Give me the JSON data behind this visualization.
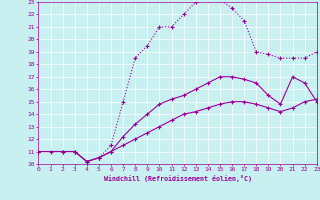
{
  "xlabel": "Windchill (Refroidissement éolien,°C)",
  "bg_color": "#c8f0f0",
  "line_color": "#990099",
  "xlim": [
    0,
    23
  ],
  "ylim": [
    10,
    23
  ],
  "yticks": [
    10,
    11,
    12,
    13,
    14,
    15,
    16,
    17,
    18,
    19,
    20,
    21,
    22,
    23
  ],
  "xticks": [
    0,
    1,
    2,
    3,
    4,
    5,
    6,
    7,
    8,
    9,
    10,
    11,
    12,
    13,
    14,
    15,
    16,
    17,
    18,
    19,
    20,
    21,
    22,
    23
  ],
  "line1_x": [
    0,
    1,
    2,
    3,
    4,
    5,
    6,
    7,
    8,
    9,
    10,
    11,
    12,
    13,
    14,
    15,
    16,
    17,
    18,
    19,
    20,
    21,
    22,
    23
  ],
  "line1_y": [
    11,
    11,
    11,
    11,
    10.2,
    10.5,
    11.5,
    15.0,
    18.5,
    19.5,
    21.0,
    21.0,
    22.0,
    23.0,
    23.2,
    23.2,
    22.5,
    21.5,
    19.0,
    18.8,
    18.5,
    18.5,
    18.5,
    19.0
  ],
  "line2_x": [
    0,
    2,
    3,
    4,
    5,
    6,
    7,
    8,
    9,
    10,
    11,
    12,
    13,
    14,
    15,
    16,
    17,
    18,
    19,
    20,
    21,
    22,
    23
  ],
  "line2_y": [
    11,
    11,
    11,
    10.2,
    10.5,
    11.0,
    12.2,
    13.2,
    14.0,
    14.8,
    15.2,
    15.5,
    16.0,
    16.5,
    17.0,
    17.0,
    16.8,
    16.5,
    15.5,
    14.8,
    17.0,
    16.5,
    15.0
  ],
  "line3_x": [
    0,
    2,
    3,
    4,
    5,
    6,
    7,
    8,
    9,
    10,
    11,
    12,
    13,
    14,
    15,
    16,
    17,
    18,
    19,
    20,
    21,
    22,
    23
  ],
  "line3_y": [
    11,
    11,
    11,
    10.2,
    10.5,
    11.0,
    11.5,
    12.0,
    12.5,
    13.0,
    13.5,
    14.0,
    14.2,
    14.5,
    14.8,
    15.0,
    15.0,
    14.8,
    14.5,
    14.2,
    14.5,
    15.0,
    15.2
  ]
}
